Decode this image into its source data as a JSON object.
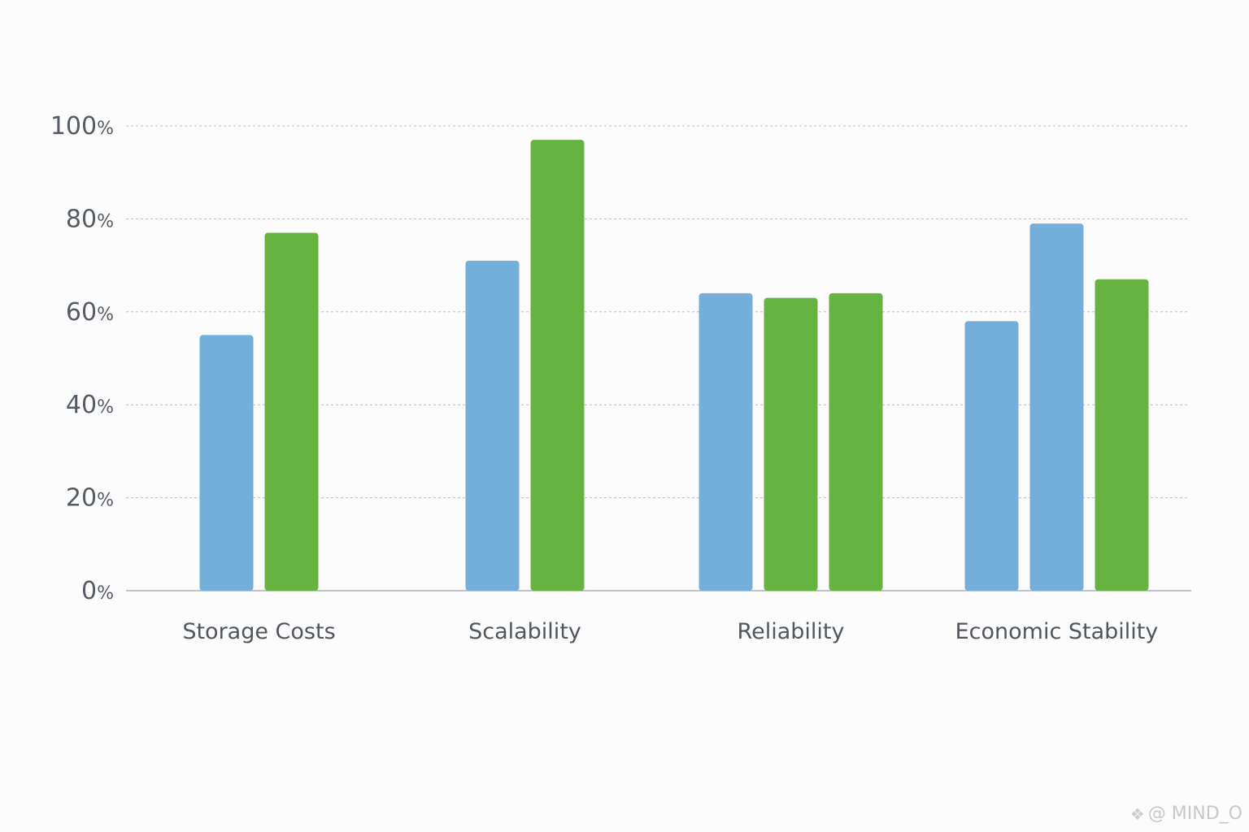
{
  "chart_data": {
    "type": "bar",
    "title": "",
    "xlabel": "",
    "ylabel": "",
    "ylim": [
      0,
      100
    ],
    "yticks": [
      0,
      20,
      40,
      60,
      80,
      100
    ],
    "ytick_suffix": "%",
    "grid": true,
    "legend": "none",
    "categories": [
      "Storage Costs",
      "Scalability",
      "Reliability",
      "Economic Stability"
    ],
    "groups": [
      {
        "category": "Storage Costs",
        "bars": [
          {
            "value": 55,
            "color": "#74aedb"
          },
          {
            "value": 77,
            "color": "#66b341"
          }
        ]
      },
      {
        "category": "Scalability",
        "bars": [
          {
            "value": 71,
            "color": "#74aedb"
          },
          {
            "value": 97,
            "color": "#66b341"
          }
        ]
      },
      {
        "category": "Reliability",
        "bars": [
          {
            "value": 64,
            "color": "#74aedb"
          },
          {
            "value": 63,
            "color": "#66b341"
          },
          {
            "value": 64,
            "color": "#66b341"
          }
        ]
      },
      {
        "category": "Economic Stability",
        "bars": [
          {
            "value": 58,
            "color": "#74aedb"
          },
          {
            "value": 79,
            "color": "#74aedb"
          },
          {
            "value": 67,
            "color": "#66b341"
          }
        ]
      }
    ]
  },
  "watermark": {
    "text": "@ MIND_O",
    "icon": "diamond-logo-icon"
  }
}
